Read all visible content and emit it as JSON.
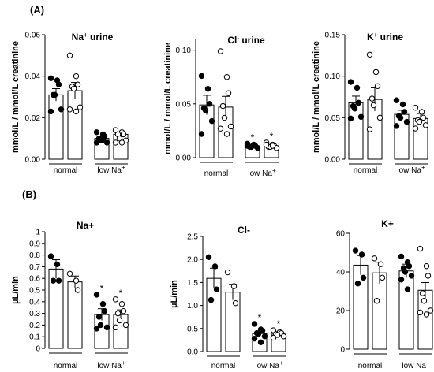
{
  "panels": [
    {
      "label": "(A)"
    },
    {
      "label": "(B)"
    }
  ],
  "group_labels": {
    "normal": "normal",
    "low": "low Na",
    "low_sup": "+"
  },
  "chart_data": [
    {
      "type": "bar",
      "title": "Na",
      "title_sup": "+",
      "title_suffix": " urine",
      "ylabel": "mmol/L / mmol/L creatinine",
      "ylim": [
        0,
        0.06
      ],
      "yticks": [
        0,
        0.02,
        0.04,
        0.06
      ],
      "ytick_labels": [
        "0.00",
        "0.02",
        "0.04",
        "0.06"
      ],
      "categories": [
        "normal",
        "normal",
        "low Na+",
        "low Na+"
      ],
      "series": [
        {
          "values": [
            0.031,
            0.033,
            0.01,
            0.012
          ],
          "errors": [
            0.003,
            0.004,
            0.001,
            0.001
          ],
          "points": [
            [
              0.039,
              0.038,
              0.036,
              0.031,
              0.031,
              0.024,
              0.023
            ],
            [
              0.05,
              0.04,
              0.036,
              0.035,
              0.034,
              0.025,
              0.024,
              0.023
            ],
            [
              0.013,
              0.012,
              0.011,
              0.01,
              0.009,
              0.008,
              0.008,
              0.009
            ],
            [
              0.014,
              0.013,
              0.012,
              0.012,
              0.01,
              0.009,
              0.008,
              0.008
            ]
          ],
          "filled": [
            true,
            false,
            true,
            false
          ]
        }
      ],
      "stars": []
    },
    {
      "type": "bar",
      "title": "Cl",
      "title_sup": "-",
      "title_suffix": " urine",
      "ylabel": "mmol/L / mmol/L creatinine",
      "ylim": [
        0,
        0.11
      ],
      "yticks": [
        0,
        0.05,
        0.1
      ],
      "ytick_labels": [
        "0.00",
        "0.05",
        "0.10"
      ],
      "categories": [
        "normal",
        "normal",
        "low Na+",
        "low Na+"
      ],
      "series": [
        {
          "values": [
            0.049,
            0.047,
            0.011,
            0.011
          ],
          "errors": [
            0.009,
            0.01,
            0.001,
            0.001
          ],
          "points": [
            [
              0.076,
              0.064,
              0.05,
              0.046,
              0.044,
              0.034,
              0.022
            ],
            [
              0.099,
              0.075,
              0.06,
              0.048,
              0.037,
              0.029,
              0.027,
              0.022
            ],
            [
              0.013,
              0.012,
              0.011,
              0.01,
              0.01,
              0.009,
              0.011,
              0.012
            ],
            [
              0.014,
              0.012,
              0.011,
              0.01,
              0.01,
              0.009,
              0.012,
              0.011
            ]
          ],
          "filled": [
            true,
            false,
            true,
            false
          ]
        }
      ],
      "stars": [
        "",
        "",
        "*",
        "*"
      ]
    },
    {
      "type": "bar",
      "title": "K",
      "title_sup": "+",
      "title_suffix": " urine",
      "ylabel": "mmol/L / mmol/L creatinine",
      "ylim": [
        0,
        0.15
      ],
      "yticks": [
        0,
        0.05,
        0.1,
        0.15
      ],
      "ytick_labels": [
        "0.00",
        "0.05",
        "0.10",
        "0.15"
      ],
      "categories": [
        "normal",
        "normal",
        "low Na+",
        "low Na+"
      ],
      "series": [
        {
          "values": [
            0.068,
            0.072,
            0.054,
            0.049
          ],
          "errors": [
            0.008,
            0.014,
            0.005,
            0.006
          ],
          "points": [
            [
              0.093,
              0.086,
              0.068,
              0.064,
              0.061,
              0.051,
              0.049
            ],
            [
              0.126,
              0.105,
              0.088,
              0.073,
              0.065,
              0.05,
              0.036
            ],
            [
              0.071,
              0.066,
              0.057,
              0.052,
              0.05,
              0.045,
              0.04
            ],
            [
              0.062,
              0.057,
              0.05,
              0.047,
              0.045,
              0.041,
              0.037
            ]
          ],
          "filled": [
            true,
            false,
            true,
            false
          ]
        }
      ],
      "stars": []
    },
    {
      "type": "bar",
      "title": "Na+",
      "title_sup": "",
      "title_suffix": "",
      "ylabel": "µL/min",
      "ylim": [
        0,
        1.0
      ],
      "yticks": [
        0,
        0.1,
        0.2,
        0.3,
        0.4,
        0.5,
        0.6,
        0.7,
        0.8,
        0.9,
        1.0
      ],
      "ytick_labels": [
        "0",
        "0.1",
        "0.2",
        "0.3",
        "0.4",
        "0.5",
        "0.6",
        "0.7",
        "0.8",
        "0.9",
        "1"
      ],
      "categories": [
        "normal",
        "normal",
        "low Na+",
        "low Na+"
      ],
      "series": [
        {
          "values": [
            0.68,
            0.57,
            0.29,
            0.29
          ],
          "errors": [
            0.08,
            0.05,
            0.05,
            0.04
          ],
          "points": [
            [
              0.79,
              0.72,
              0.58,
              0.58
            ],
            [
              0.64,
              0.58,
              0.5
            ],
            [
              0.46,
              0.38,
              0.32,
              0.27,
              0.2,
              0.18,
              0.17
            ],
            [
              0.42,
              0.38,
              0.32,
              0.3,
              0.24,
              0.2,
              0.18
            ]
          ],
          "filled": [
            true,
            false,
            true,
            false
          ]
        }
      ],
      "stars": [
        "",
        "",
        "*",
        "*"
      ]
    },
    {
      "type": "bar",
      "title": "Cl-",
      "title_sup": "",
      "title_suffix": "",
      "ylabel": "µL/min",
      "ylim": [
        0,
        2.5
      ],
      "yticks": [
        0,
        0.5,
        1.0,
        1.5,
        2.0,
        2.5
      ],
      "ytick_labels": [
        "0.0",
        "0.5",
        "1.0",
        "1.5",
        "2.0",
        "2.5"
      ],
      "categories": [
        "normal",
        "normal",
        "low Na+",
        "low Na+"
      ],
      "series": [
        {
          "values": [
            1.59,
            1.29,
            0.39,
            0.38
          ],
          "errors": [
            0.22,
            0.17,
            0.05,
            0.03
          ],
          "points": [
            [
              2.05,
              1.85,
              1.35,
              1.12
            ],
            [
              1.72,
              1.42,
              1.05
            ],
            [
              0.6,
              0.48,
              0.45,
              0.4,
              0.38,
              0.33,
              0.28,
              0.2
            ],
            [
              0.46,
              0.42,
              0.4,
              0.38,
              0.36,
              0.33,
              0.3
            ]
          ],
          "filled": [
            true,
            false,
            true,
            false
          ]
        }
      ],
      "stars": [
        "",
        "",
        "*",
        "*"
      ]
    },
    {
      "type": "bar",
      "title": "K+",
      "title_sup": "",
      "title_suffix": "",
      "ylabel": "",
      "ylim": [
        0,
        60
      ],
      "yticks": [
        0,
        20,
        40,
        60
      ],
      "ytick_labels": [
        "0",
        "20",
        "40",
        "60"
      ],
      "categories": [
        "normal",
        "normal",
        "low Na+",
        "low Na+"
      ],
      "series": [
        {
          "values": [
            43.5,
            39.5,
            40.5,
            30.5
          ],
          "errors": [
            5.0,
            5.5,
            3.5,
            4.0
          ],
          "points": [
            [
              51,
              49,
              37,
              34
            ],
            [
              47,
              44,
              37,
              25
            ],
            [
              48,
              45,
              43,
              42,
              40,
              38,
              36,
              31
            ],
            [
              52,
              43,
              38,
              29,
              25,
              20,
              19,
              18
            ]
          ],
          "filled": [
            true,
            false,
            true,
            false
          ]
        }
      ],
      "stars": []
    }
  ],
  "colors": {
    "star_filled": "#1e6b3a",
    "star_open": "#1e6b3a",
    "star_a": "#333333"
  }
}
